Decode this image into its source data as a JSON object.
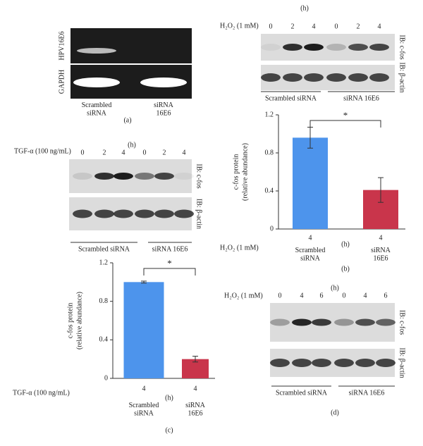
{
  "panel_a": {
    "row_labels": [
      "HPV16E6",
      "GAPDH"
    ],
    "lanes": [
      "Scrambled siRNA",
      "siRNA 16E6"
    ],
    "caption": "(a)"
  },
  "panel_b_blot": {
    "time_unit": "(h)",
    "treatment": "H₂O₂ (1 mM)",
    "times": [
      "0",
      "2",
      "4",
      "0",
      "2",
      "4"
    ],
    "blots": [
      "IB: c-fos",
      "IB: β-actin"
    ],
    "groups": [
      "Scrambled siRNA",
      "siRNA 16E6"
    ]
  },
  "panel_c_blot": {
    "time_unit": "(h)",
    "treatment": "TGF-α (100 ng/mL)",
    "times": [
      "0",
      "2",
      "4",
      "0",
      "2",
      "4"
    ],
    "blots": [
      "IB: c-fos",
      "IB: β-actin"
    ],
    "groups": [
      "Scrambled siRNA",
      "siRNA 16E6"
    ]
  },
  "panel_d": {
    "time_unit": "(h)",
    "treatment": "H₂O₂ (1 mM)",
    "times": [
      "0",
      "4",
      "6",
      "0",
      "4",
      "6"
    ],
    "blots": [
      "IB: c-fos",
      "IB: β-actin"
    ],
    "groups": [
      "Scrambled siRNA",
      "siRNA 16E6"
    ],
    "caption": "(d)"
  },
  "chart_data": [
    {
      "type": "bar",
      "y_label": [
        "c-fos protein",
        "(relative abundance)"
      ],
      "categories": [
        "Scrambled siRNA",
        "siRNA 16E6"
      ],
      "treatment": "H₂O₂ (1 mM)",
      "times": [
        4,
        4
      ],
      "time_unit": "(h)",
      "values": [
        0.96,
        0.41
      ],
      "errors": [
        0.11,
        0.13
      ],
      "colors": [
        "#4d94ec",
        "#c9354b"
      ],
      "ylim": [
        0,
        1.2
      ],
      "yticks": [
        0,
        0.4,
        0.8,
        1.2
      ],
      "significance": "*",
      "caption": "(b)"
    },
    {
      "type": "bar",
      "y_label": [
        "c-fos protein",
        "(relative abundance)"
      ],
      "categories": [
        "Scrambled siRNA",
        "siRNA 16E6"
      ],
      "treatment": "TGF-α (100 ng/mL)",
      "times": [
        4,
        4
      ],
      "time_unit": "(h)",
      "values": [
        1.0,
        0.2
      ],
      "errors": [
        0.01,
        0.03
      ],
      "colors": [
        "#4d94ec",
        "#c9354b"
      ],
      "ylim": [
        0,
        1.2
      ],
      "yticks": [
        0,
        0.4,
        0.8,
        1.2
      ],
      "significance": "*",
      "caption": "(c)"
    }
  ]
}
